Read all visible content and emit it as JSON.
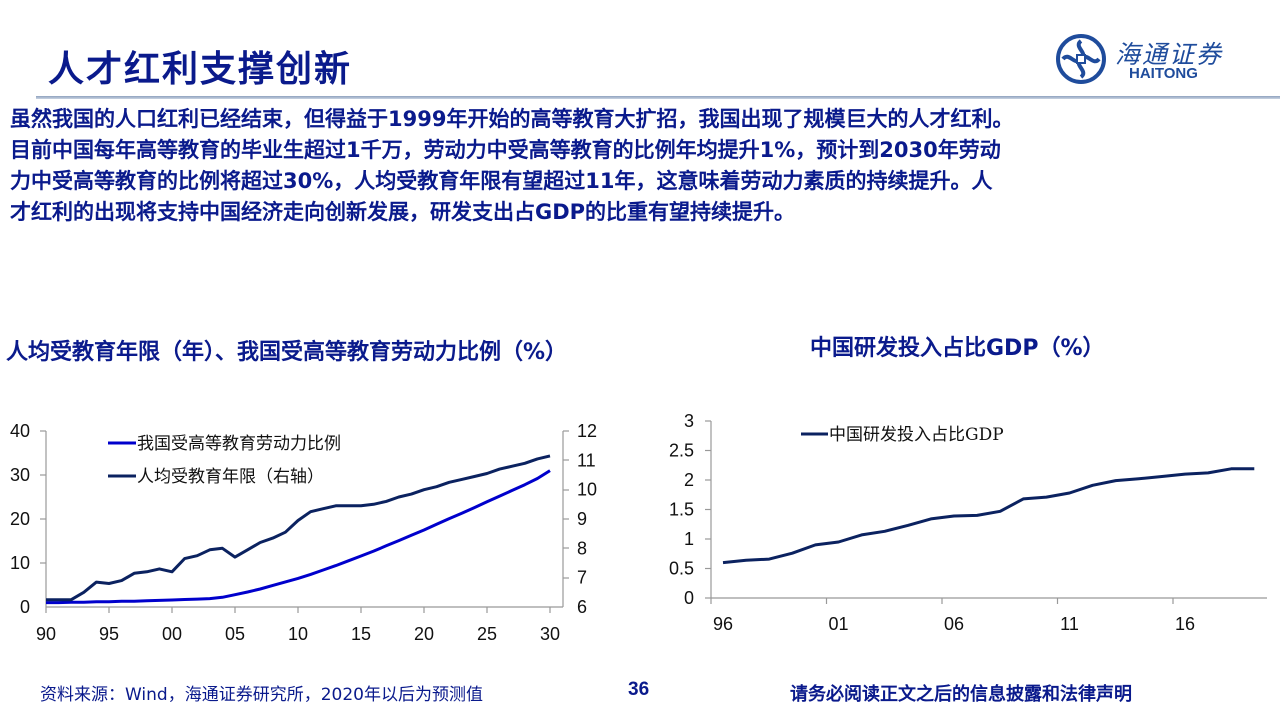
{
  "header": {
    "title": "人才红利支撑创新",
    "logo": {
      "icon": "haitong-swirl-logo-icon",
      "cn": "海通证券",
      "en": "HAITONG",
      "color": "#1f4c9c"
    }
  },
  "body": {
    "lines": [
      "虽然我国的人口红利已经结束，但得益于1999年开始的高等教育大扩招，我国出现了规模巨大的人才红利。",
      "目前中国每年高等教育的毕业生超过1千万，劳动力中受高等教育的比例年均提升1%，预计到2030年劳动",
      "力中受高等教育的比例将超过30%，人均受教育年限有望超过11年，这意味着劳动力素质的持续提升。人",
      "才红利的出现将支持中国经济走向创新发展，研发支出占GDP的比重有望持续提升。"
    ]
  },
  "charts": {
    "left_title": "人均受教育年限（年）、我国受高等教育劳动力比例（%）",
    "right_title": "中国研发投入占比GDP（%）"
  },
  "chart_data": [
    {
      "type": "line",
      "title": "人均受教育年限（年）、我国受高等教育劳动力比例（%）",
      "x": [
        1990,
        1991,
        1992,
        1993,
        1994,
        1995,
        1996,
        1997,
        1998,
        1999,
        2000,
        2001,
        2002,
        2003,
        2004,
        2005,
        2006,
        2007,
        2008,
        2009,
        2010,
        2011,
        2012,
        2013,
        2014,
        2015,
        2016,
        2017,
        2018,
        2019,
        2020,
        2021,
        2022,
        2023,
        2024,
        2025,
        2026,
        2027,
        2028,
        2029,
        2030
      ],
      "xtick_labels": [
        "90",
        "95",
        "00",
        "05",
        "10",
        "15",
        "20",
        "25",
        "30"
      ],
      "series": [
        {
          "name": "我国受高等教育劳动力比例",
          "axis": "left",
          "color": "#0000cc",
          "values": [
            1.0,
            1.0,
            1.1,
            1.1,
            1.2,
            1.2,
            1.3,
            1.3,
            1.4,
            1.5,
            1.6,
            1.7,
            1.8,
            1.9,
            2.2,
            2.8,
            3.4,
            4.1,
            4.9,
            5.7,
            6.5,
            7.4,
            8.4,
            9.4,
            10.5,
            11.6,
            12.7,
            13.9,
            15.1,
            16.3,
            17.5,
            18.8,
            20.1,
            21.3,
            22.6,
            23.9,
            25.2,
            26.5,
            27.8,
            29.2,
            31.0
          ]
        },
        {
          "name": "人均受教育年限（右轴）",
          "axis": "right",
          "color": "#0b2260",
          "values": [
            6.25,
            6.25,
            6.25,
            6.5,
            6.85,
            6.8,
            6.9,
            7.15,
            7.2,
            7.3,
            7.2,
            7.65,
            7.75,
            7.95,
            8.0,
            7.7,
            7.95,
            8.2,
            8.35,
            8.55,
            8.95,
            9.25,
            9.35,
            9.45,
            9.45,
            9.45,
            9.5,
            9.6,
            9.75,
            9.85,
            10.0,
            10.1,
            10.25,
            10.35,
            10.45,
            10.55,
            10.7,
            10.8,
            10.9,
            11.05,
            11.15
          ]
        }
      ],
      "left_axis": {
        "ylim": [
          0,
          40
        ],
        "ticks": [
          0,
          10,
          20,
          30,
          40
        ]
      },
      "right_axis": {
        "ylim": [
          6,
          12
        ],
        "ticks": [
          6,
          7,
          8,
          9,
          10,
          11,
          12
        ]
      },
      "legend": {
        "position": "top-left-inside",
        "entries": [
          "我国受高等教育劳动力比例",
          "人均受教育年限（右轴）"
        ]
      },
      "grid": false
    },
    {
      "type": "line",
      "title": "中国研发投入占比GDP（%）",
      "x": [
        1996,
        1997,
        1998,
        1999,
        2000,
        2001,
        2002,
        2003,
        2004,
        2005,
        2006,
        2007,
        2008,
        2009,
        2010,
        2011,
        2012,
        2013,
        2014,
        2015,
        2016,
        2017,
        2018,
        2019
      ],
      "xtick_labels": [
        "96",
        "01",
        "06",
        "11",
        "16"
      ],
      "series": [
        {
          "name": "中国研发投入占比GDP",
          "color": "#0b2260",
          "values": [
            0.6,
            0.64,
            0.66,
            0.76,
            0.9,
            0.95,
            1.07,
            1.13,
            1.23,
            1.34,
            1.39,
            1.4,
            1.47,
            1.68,
            1.71,
            1.78,
            1.91,
            1.99,
            2.02,
            2.06,
            2.1,
            2.12,
            2.19,
            2.19
          ]
        }
      ],
      "yaxis": {
        "ylim": [
          0,
          3
        ],
        "ticks": [
          0,
          0.5,
          1,
          1.5,
          2,
          2.5,
          3
        ]
      },
      "legend": {
        "position": "top-left-inside",
        "entries": [
          "中国研发投入占比GDP"
        ]
      },
      "grid": false
    }
  ],
  "footer": {
    "source": "资料来源：Wind，海通证券研究所，2020年以后为预测值",
    "page_number": "36",
    "disclaimer": "请务必阅读正文之后的信息披露和法律声明"
  }
}
